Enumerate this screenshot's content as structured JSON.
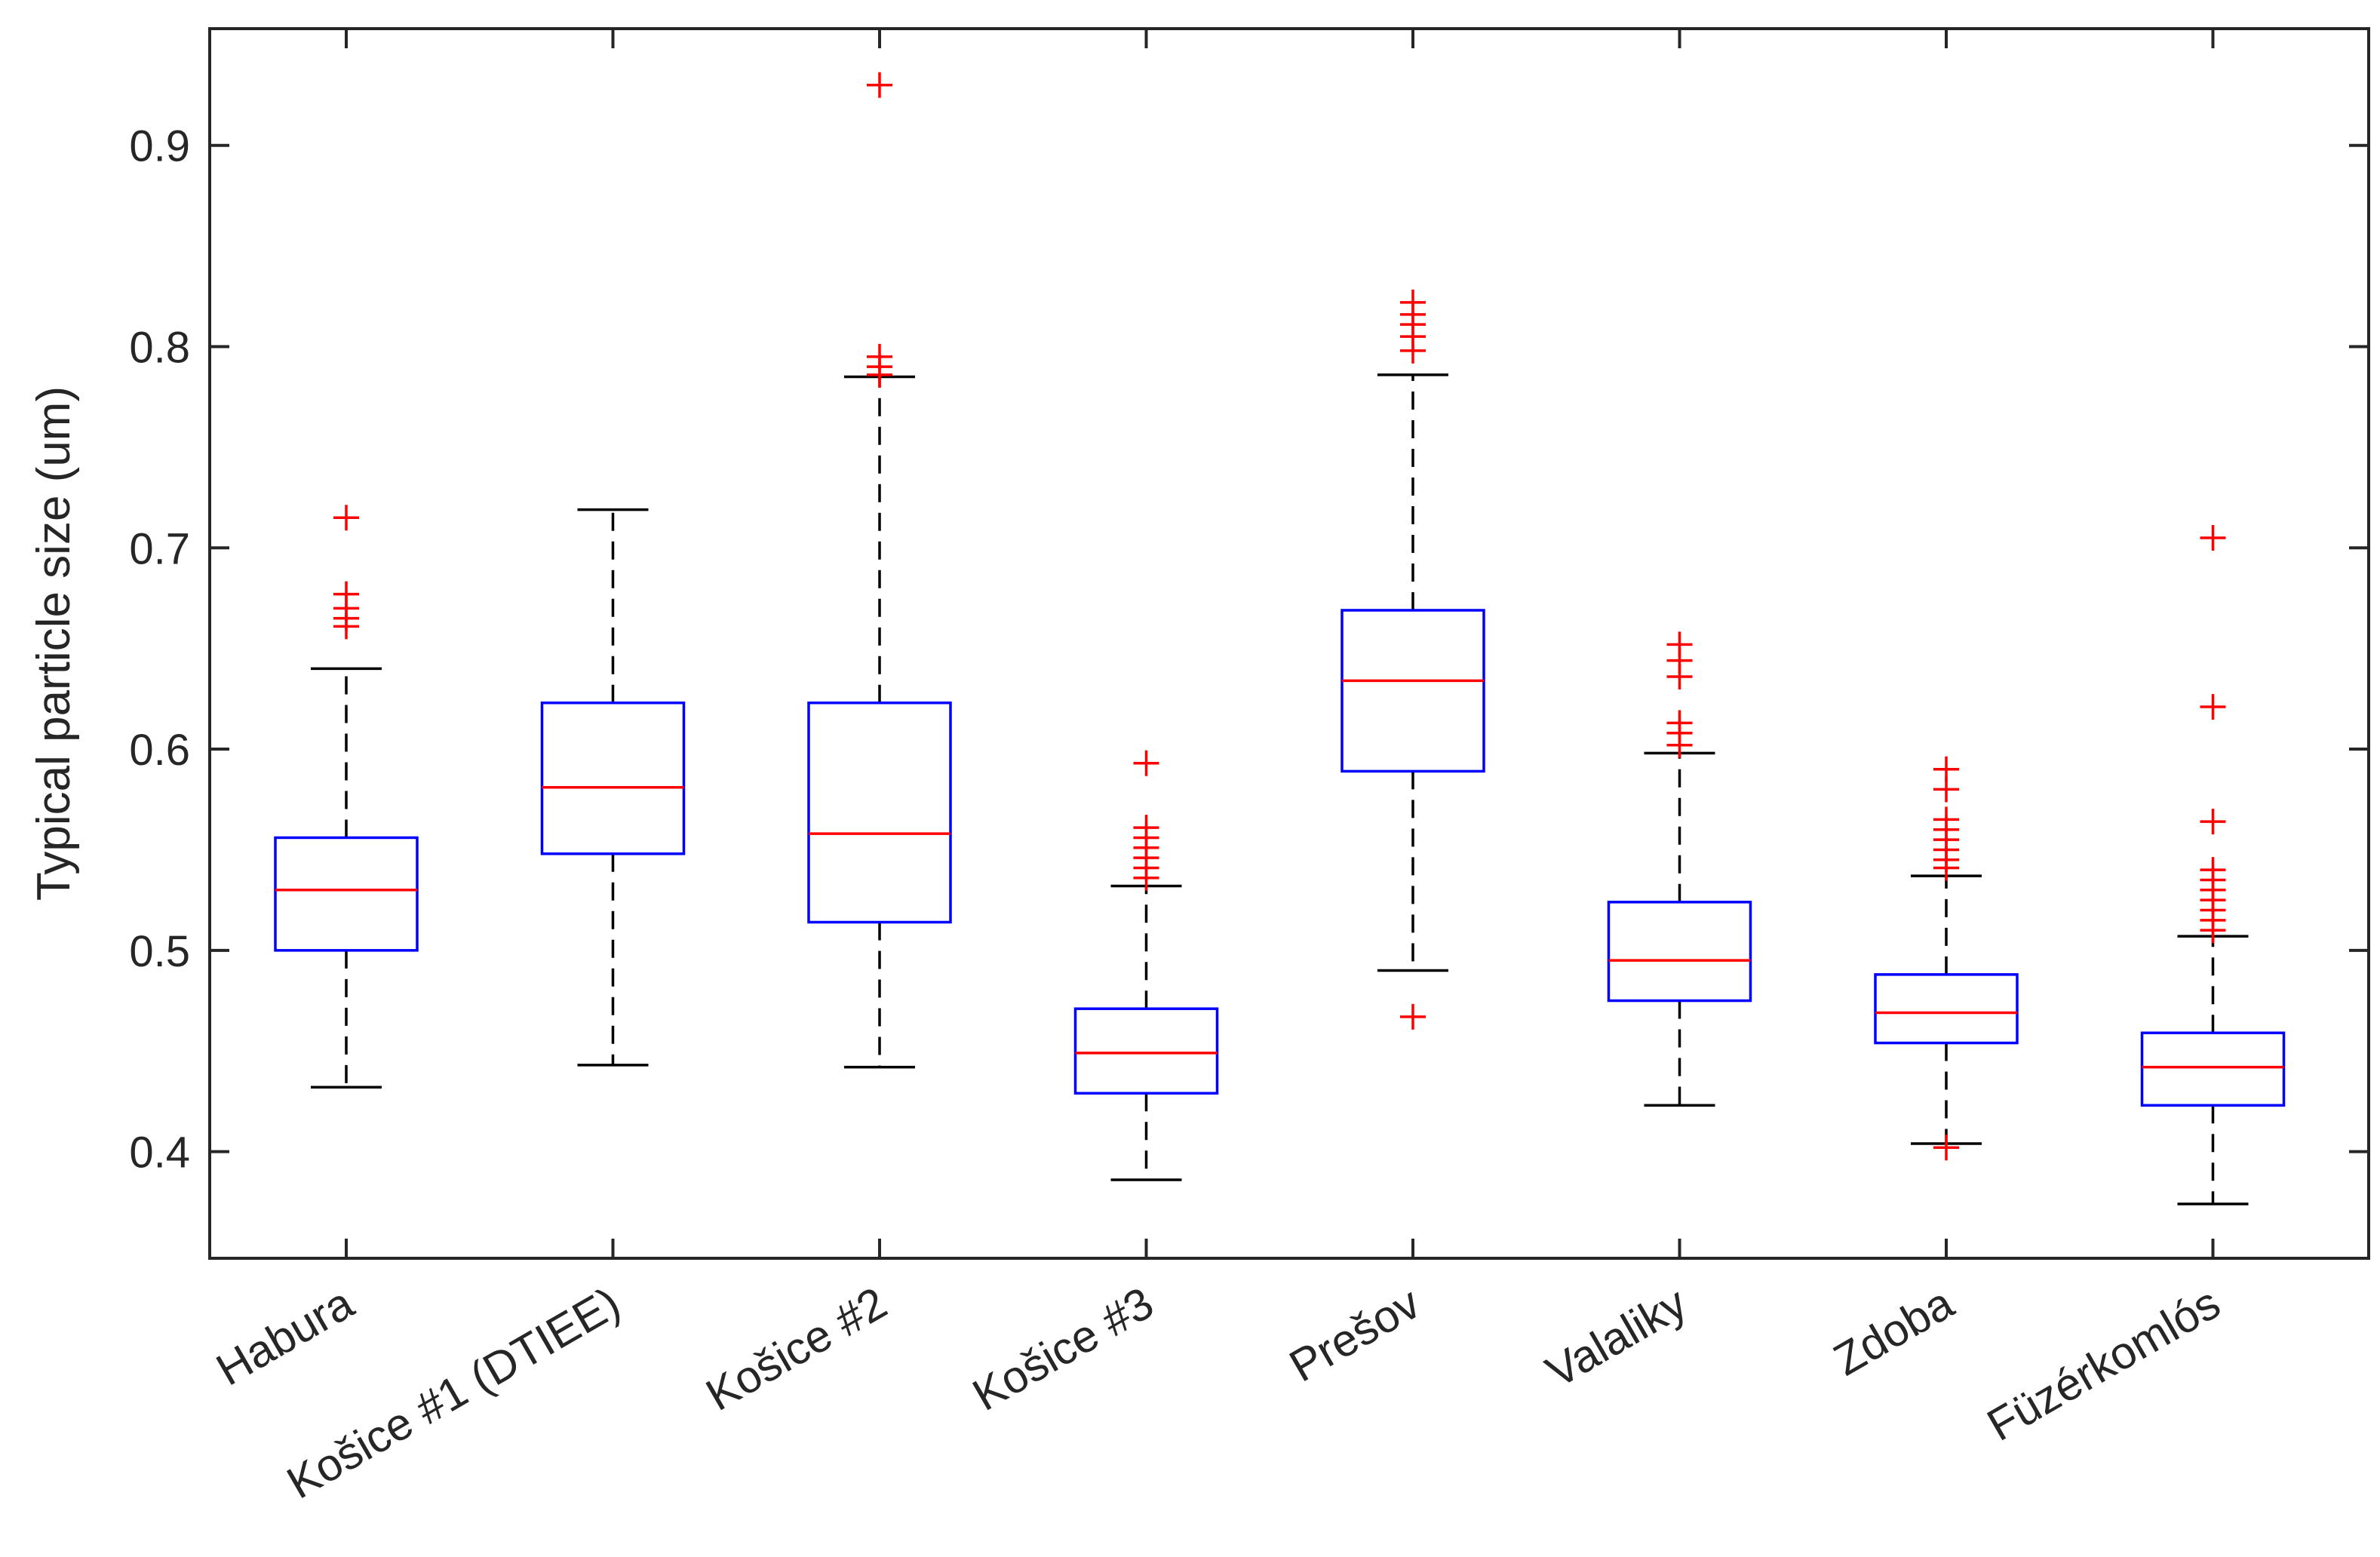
{
  "chart_data": {
    "type": "boxplot",
    "title": "",
    "xlabel": "",
    "ylabel": "Typical particle size (um)",
    "ylim": [
      0.347,
      0.958
    ],
    "yticks": [
      0.4,
      0.5,
      0.6,
      0.7,
      0.8,
      0.9
    ],
    "ytick_labels": [
      "0.4",
      "0.5",
      "0.6",
      "0.7",
      "0.8",
      "0.9"
    ],
    "grid": false,
    "colors": {
      "box": "#0000ff",
      "median": "#ff0000",
      "whisker": "#000000",
      "outlier": "#ff0000",
      "axis": "#262626"
    },
    "categories": [
      "Habura",
      "Košice #1 (DTIEE)",
      "Košice #2",
      "Košice #3",
      "Prešov",
      "Valaliky",
      "Zdoba",
      "Füzérkomlós"
    ],
    "boxes": [
      {
        "name": "Habura",
        "whisker_low": 0.432,
        "q1": 0.5,
        "median": 0.53,
        "q3": 0.556,
        "whisker_high": 0.64,
        "outliers": [
          0.715,
          0.677,
          0.67,
          0.665,
          0.661
        ]
      },
      {
        "name": "Košice #1 (DTIEE)",
        "whisker_low": 0.443,
        "q1": 0.548,
        "median": 0.581,
        "q3": 0.623,
        "whisker_high": 0.719,
        "outliers": []
      },
      {
        "name": "Košice #2",
        "whisker_low": 0.442,
        "q1": 0.514,
        "median": 0.558,
        "q3": 0.623,
        "whisker_high": 0.785,
        "outliers": [
          0.93,
          0.795,
          0.79,
          0.786
        ]
      },
      {
        "name": "Košice #3",
        "whisker_low": 0.386,
        "q1": 0.429,
        "median": 0.449,
        "q3": 0.471,
        "whisker_high": 0.532,
        "outliers": [
          0.593,
          0.561,
          0.556,
          0.551,
          0.546,
          0.541,
          0.536
        ]
      },
      {
        "name": "Prešov",
        "whisker_low": 0.49,
        "q1": 0.589,
        "median": 0.634,
        "q3": 0.669,
        "whisker_high": 0.786,
        "outliers": [
          0.822,
          0.816,
          0.811,
          0.805,
          0.798,
          0.467
        ]
      },
      {
        "name": "Valaliky",
        "whisker_low": 0.423,
        "q1": 0.475,
        "median": 0.495,
        "q3": 0.524,
        "whisker_high": 0.598,
        "outliers": [
          0.652,
          0.644,
          0.636,
          0.613,
          0.608,
          0.602
        ]
      },
      {
        "name": "Zdoba",
        "whisker_low": 0.404,
        "q1": 0.454,
        "median": 0.469,
        "q3": 0.488,
        "whisker_high": 0.537,
        "outliers": [
          0.59,
          0.58,
          0.565,
          0.56,
          0.555,
          0.55,
          0.545,
          0.541,
          0.402
        ]
      },
      {
        "name": "Füzérkomlós",
        "whisker_low": 0.374,
        "q1": 0.423,
        "median": 0.442,
        "q3": 0.459,
        "whisker_high": 0.507,
        "outliers": [
          0.705,
          0.621,
          0.564,
          0.54,
          0.535,
          0.53,
          0.525,
          0.52,
          0.515,
          0.51
        ]
      }
    ]
  }
}
